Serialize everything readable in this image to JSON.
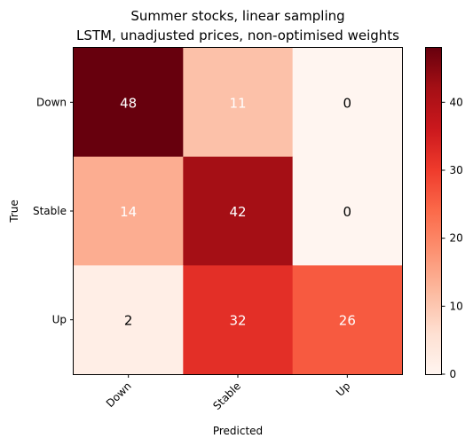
{
  "chart_data": {
    "type": "heatmap",
    "title": "Summer stocks, linear sampling",
    "subtitle": "LSTM, unadjusted prices, non-optimised weights",
    "xlabel": "Predicted",
    "ylabel": "True",
    "x_categories": [
      "Down",
      "Stable",
      "Up"
    ],
    "y_categories": [
      "Down",
      "Stable",
      "Up"
    ],
    "values": [
      [
        48,
        11,
        0
      ],
      [
        14,
        42,
        0
      ],
      [
        2,
        32,
        26
      ]
    ],
    "colorbar": {
      "colormap": "Reds",
      "min": 0,
      "max": 48,
      "ticks": [
        0,
        10,
        20,
        30,
        40
      ]
    }
  }
}
